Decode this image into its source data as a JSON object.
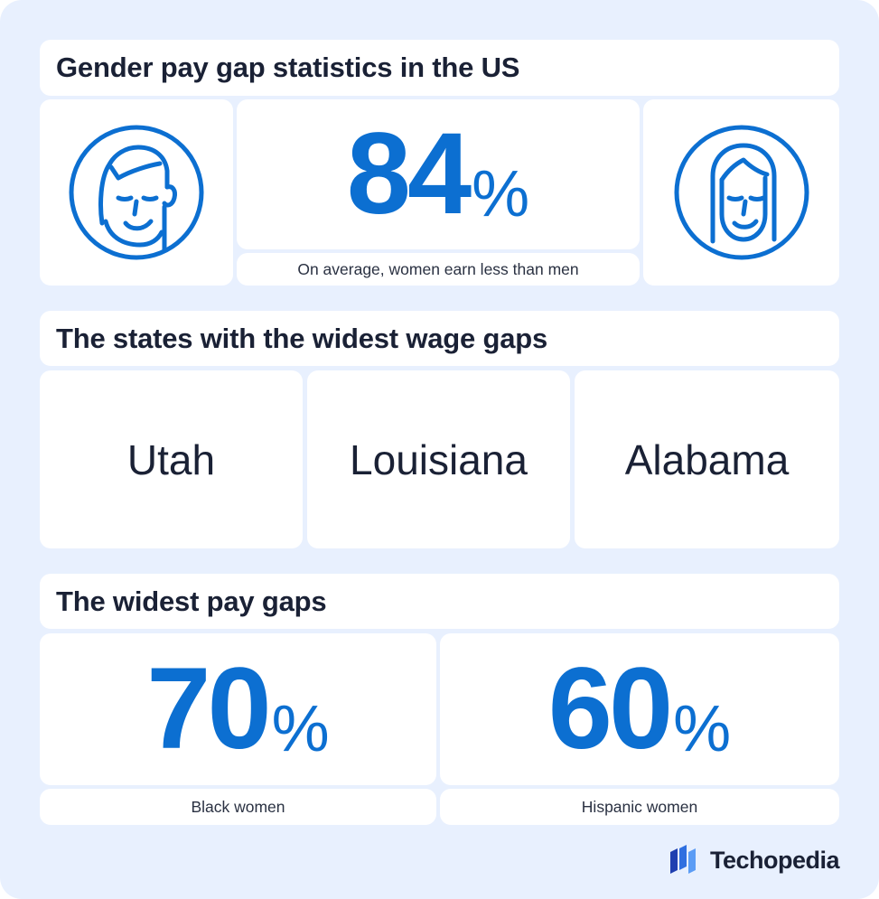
{
  "sections": {
    "overview": {
      "title": "Gender pay gap statistics in the US",
      "value": "84",
      "unit": "%",
      "caption": "On average, women earn less than men"
    },
    "states": {
      "title": "The states with the widest wage gaps",
      "items": [
        "Utah",
        "Louisiana",
        "Alabama"
      ]
    },
    "gaps": {
      "title": "The widest pay gaps",
      "items": [
        {
          "value": "70",
          "unit": "%",
          "label": "Black women"
        },
        {
          "value": "60",
          "unit": "%",
          "label": "Hispanic women"
        }
      ]
    }
  },
  "brand": {
    "name": "Techopedia",
    "icon": "techopedia-logo-icon"
  },
  "icons": {
    "left": "man-face-icon",
    "right": "woman-face-icon"
  },
  "colors": {
    "accent": "#0c6fd1",
    "background": "#e8f0fe",
    "card": "#ffffff",
    "text": "#1a2135"
  }
}
